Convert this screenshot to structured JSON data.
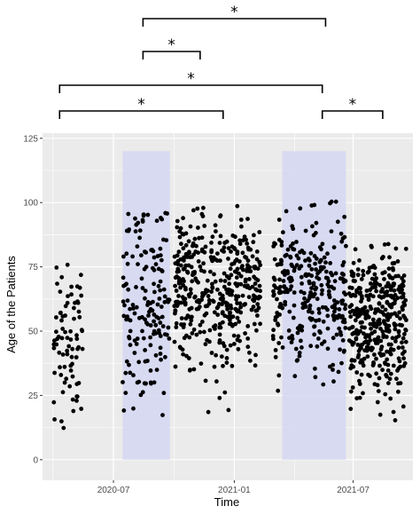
{
  "chart_data": {
    "type": "scatter",
    "title": "",
    "xlabel": "Time",
    "ylabel": "Age of the Patients",
    "ylim": [
      -8,
      127
    ],
    "xlim": [
      "2020-03-15",
      "2021-09-30"
    ],
    "y_ticks": [
      0,
      25,
      50,
      75,
      100,
      125
    ],
    "y_tick_labels": [
      "0",
      "25",
      "50",
      "75",
      "100",
      "125"
    ],
    "x_ticks": [
      "2020-07-01",
      "2021-01-01",
      "2021-07-01"
    ],
    "x_tick_labels": [
      "2020-07",
      "2021-01",
      "2021-07"
    ],
    "grid": true,
    "panel_color": "#ebebeb",
    "point_color": "#000000",
    "shade_color": "#d4d7f2",
    "shaded_periods": [
      {
        "start": "2020-07-15",
        "end": "2020-09-25",
        "ymin": 0,
        "ymax": 120
      },
      {
        "start": "2021-03-15",
        "end": "2021-06-20",
        "ymin": 0,
        "ymax": 120
      }
    ],
    "clusters": [
      {
        "start": "2020-04-01",
        "end": "2020-05-15",
        "count": 80,
        "mean": 50,
        "sd": 17,
        "min": 10,
        "max": 89
      },
      {
        "start": "2020-07-15",
        "end": "2020-09-25",
        "count": 160,
        "mean": 57,
        "sd": 22,
        "min": 15,
        "max": 98
      },
      {
        "start": "2020-10-01",
        "end": "2021-02-10",
        "count": 420,
        "mean": 66,
        "sd": 14,
        "min": 17,
        "max": 99
      },
      {
        "start": "2021-03-01",
        "end": "2021-06-20",
        "count": 300,
        "mean": 64,
        "sd": 15,
        "min": 20,
        "max": 101
      },
      {
        "start": "2021-06-25",
        "end": "2021-09-20",
        "count": 380,
        "mean": 52,
        "sd": 14,
        "min": 15,
        "max": 87
      }
    ],
    "annotations": [
      {
        "label": "*",
        "start": "2020-08-15",
        "end": "2021-05-20",
        "level": 1
      },
      {
        "label": "*",
        "start": "2020-08-15",
        "end": "2020-11-10",
        "level": 2
      },
      {
        "label": "*",
        "start": "2020-04-10",
        "end": "2021-05-15",
        "level": 3
      },
      {
        "label": "*",
        "start": "2020-04-10",
        "end": "2020-12-15",
        "level": 4
      },
      {
        "label": "*",
        "start": "2021-05-15",
        "end": "2021-08-15",
        "level": 4
      }
    ]
  }
}
